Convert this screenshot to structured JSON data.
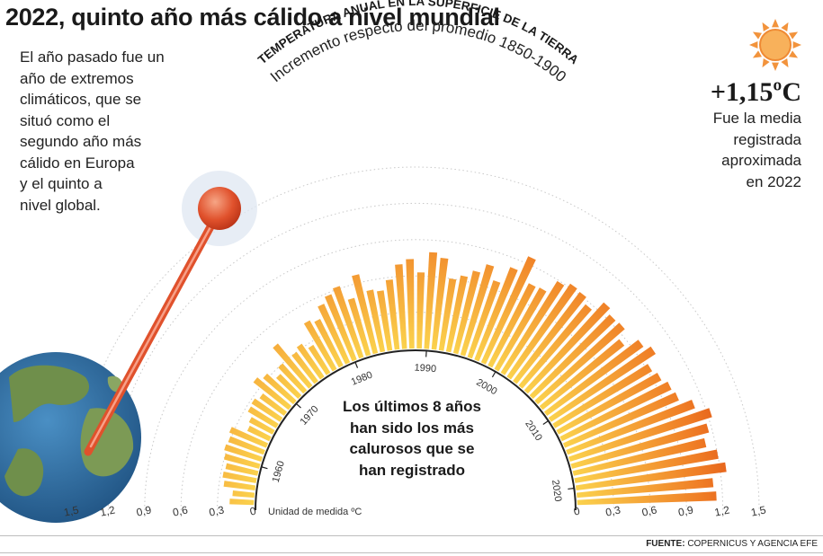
{
  "headline": "2022, quinto año más cálido a nivel mundial",
  "intro_lines": [
    "El año pasado fue un",
    "año de extremos",
    "climáticos, que se",
    "situó como el",
    "segundo año más",
    "cálido en Europa",
    "y el quinto a",
    "nivel global."
  ],
  "highlight": {
    "value": "+1,15ºC",
    "caption_lines": [
      "Fue la media",
      "registrada",
      "aproximada",
      "en 2022"
    ]
  },
  "center_note_lines": [
    "Los últimos 8 años",
    "han sido los más",
    "calurosos que se",
    "han registrado"
  ],
  "unit_label": "Unidad de medida ºC",
  "source_label": "FUENTE:",
  "source_text": "COPERNICUS Y AGENCIA EFE",
  "colors": {
    "bar_inner": "#fbd24d",
    "bar_outer": "#e24a12",
    "thermometer": "#e0512c",
    "sun": "#f5a04c",
    "ocean": "#2f6fa0",
    "land": "#6f8f4b"
  },
  "icons": [
    "globe-icon",
    "thermometer-icon",
    "sun-icon"
  ],
  "chart_data": {
    "type": "bar",
    "layout": "radial semicircle",
    "title": "TEMPERATURA ANUAL EN LA SUPERFICIE DE LA TIERRA",
    "subtitle": "Incremento respecto del promedio 1850-1900",
    "xlabel": "",
    "ylabel": "Unidad de medida ºC",
    "ylim": [
      0,
      1.5
    ],
    "left_scale_ticks": [
      "0",
      "0,3",
      "0,6",
      "0,9",
      "1,2",
      "1,5"
    ],
    "right_scale_ticks": [
      "0",
      "0,3",
      "0,6",
      "0,9",
      "1,2",
      "1,5"
    ],
    "year_ticks": [
      "1960",
      "1970",
      "1980",
      "1990",
      "2000",
      "2010",
      "2020"
    ],
    "grid": true,
    "categories": [
      1955,
      1956,
      1957,
      1958,
      1959,
      1960,
      1961,
      1962,
      1963,
      1964,
      1965,
      1966,
      1967,
      1968,
      1969,
      1970,
      1971,
      1972,
      1973,
      1974,
      1975,
      1976,
      1977,
      1978,
      1979,
      1980,
      1981,
      1982,
      1983,
      1984,
      1985,
      1986,
      1987,
      1988,
      1989,
      1990,
      1991,
      1992,
      1993,
      1994,
      1995,
      1996,
      1997,
      1998,
      1999,
      2000,
      2001,
      2002,
      2003,
      2004,
      2005,
      2006,
      2007,
      2008,
      2009,
      2010,
      2011,
      2012,
      2013,
      2014,
      2015,
      2016,
      2017,
      2018,
      2019,
      2020,
      2021,
      2022
    ],
    "values": [
      0.2,
      0.18,
      0.26,
      0.28,
      0.27,
      0.3,
      0.32,
      0.31,
      0.33,
      0.2,
      0.22,
      0.27,
      0.28,
      0.25,
      0.37,
      0.33,
      0.25,
      0.3,
      0.45,
      0.3,
      0.33,
      0.27,
      0.46,
      0.43,
      0.53,
      0.58,
      0.62,
      0.49,
      0.67,
      0.52,
      0.5,
      0.58,
      0.7,
      0.74,
      0.63,
      0.8,
      0.76,
      0.6,
      0.64,
      0.7,
      0.78,
      0.67,
      0.82,
      0.96,
      0.76,
      0.77,
      0.89,
      0.93,
      0.92,
      0.87,
      0.98,
      0.94,
      0.95,
      0.86,
      0.98,
      1.03,
      0.93,
      0.96,
      1.0,
      1.02,
      1.12,
      1.23,
      1.17,
      1.12,
      1.2,
      1.25,
      1.13,
      1.15
    ]
  }
}
